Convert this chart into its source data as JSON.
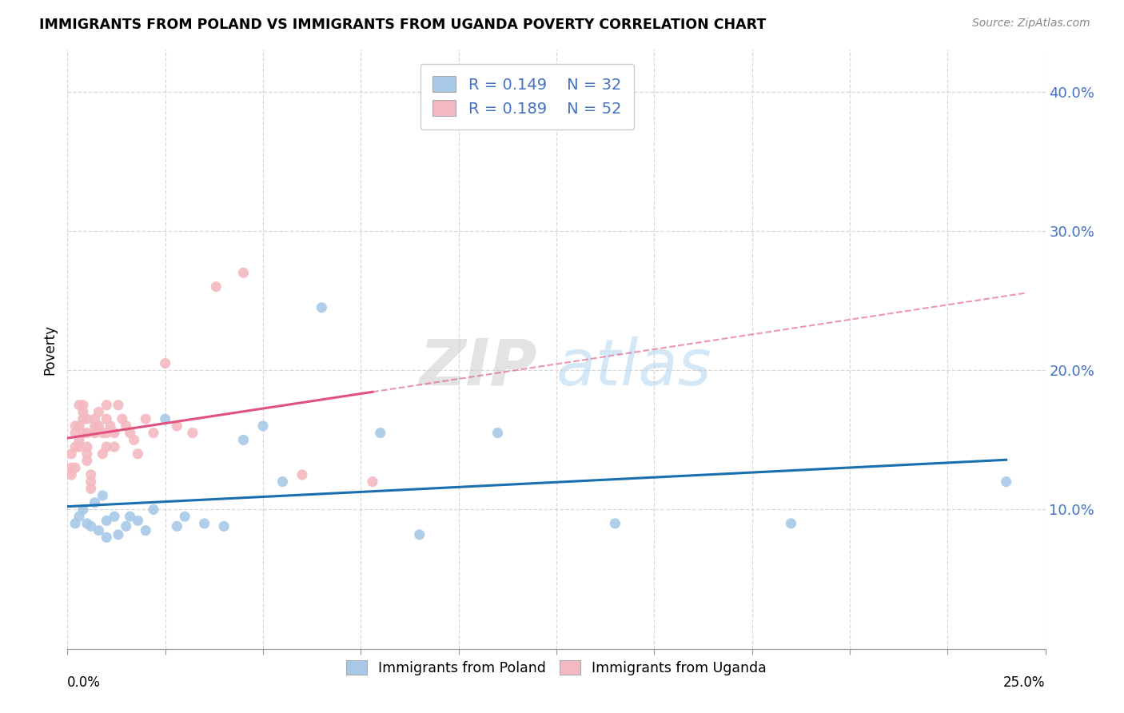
{
  "title": "IMMIGRANTS FROM POLAND VS IMMIGRANTS FROM UGANDA POVERTY CORRELATION CHART",
  "source": "Source: ZipAtlas.com",
  "ylabel": "Poverty",
  "ytick_labels": [
    "10.0%",
    "20.0%",
    "30.0%",
    "40.0%"
  ],
  "ytick_values": [
    0.1,
    0.2,
    0.3,
    0.4
  ],
  "xlim": [
    0.0,
    0.25
  ],
  "ylim": [
    0.0,
    0.43
  ],
  "poland_color": "#a8c8e8",
  "uganda_color": "#f4b8c0",
  "poland_line_color": "#1a6faf",
  "uganda_line_color": "#e05080",
  "poland_R": 0.149,
  "uganda_R": 0.189,
  "poland_N": 32,
  "uganda_N": 52,
  "grid_color": "#d8d8d8",
  "background_color": "#ffffff",
  "poland_scatter_x": [
    0.002,
    0.003,
    0.004,
    0.005,
    0.006,
    0.007,
    0.008,
    0.009,
    0.01,
    0.01,
    0.012,
    0.013,
    0.015,
    0.016,
    0.018,
    0.02,
    0.022,
    0.025,
    0.028,
    0.03,
    0.035,
    0.04,
    0.045,
    0.05,
    0.055,
    0.065,
    0.08,
    0.09,
    0.11,
    0.14,
    0.185,
    0.24
  ],
  "poland_scatter_y": [
    0.09,
    0.095,
    0.1,
    0.09,
    0.088,
    0.105,
    0.085,
    0.11,
    0.092,
    0.08,
    0.095,
    0.082,
    0.088,
    0.095,
    0.092,
    0.085,
    0.1,
    0.165,
    0.088,
    0.095,
    0.09,
    0.088,
    0.15,
    0.16,
    0.12,
    0.245,
    0.155,
    0.082,
    0.155,
    0.09,
    0.09,
    0.12
  ],
  "uganda_scatter_x": [
    0.001,
    0.001,
    0.001,
    0.002,
    0.002,
    0.002,
    0.002,
    0.003,
    0.003,
    0.003,
    0.003,
    0.004,
    0.004,
    0.004,
    0.004,
    0.005,
    0.005,
    0.005,
    0.005,
    0.005,
    0.006,
    0.006,
    0.006,
    0.007,
    0.007,
    0.007,
    0.008,
    0.008,
    0.009,
    0.009,
    0.01,
    0.01,
    0.01,
    0.01,
    0.011,
    0.012,
    0.012,
    0.013,
    0.014,
    0.015,
    0.016,
    0.017,
    0.018,
    0.02,
    0.022,
    0.025,
    0.028,
    0.032,
    0.038,
    0.045,
    0.06,
    0.078
  ],
  "uganda_scatter_y": [
    0.14,
    0.125,
    0.13,
    0.16,
    0.155,
    0.145,
    0.13,
    0.175,
    0.16,
    0.15,
    0.145,
    0.165,
    0.155,
    0.175,
    0.17,
    0.165,
    0.155,
    0.145,
    0.14,
    0.135,
    0.125,
    0.12,
    0.115,
    0.165,
    0.16,
    0.155,
    0.17,
    0.16,
    0.155,
    0.14,
    0.175,
    0.165,
    0.155,
    0.145,
    0.16,
    0.155,
    0.145,
    0.175,
    0.165,
    0.16,
    0.155,
    0.15,
    0.14,
    0.165,
    0.155,
    0.205,
    0.16,
    0.155,
    0.26,
    0.27,
    0.125,
    0.12
  ]
}
